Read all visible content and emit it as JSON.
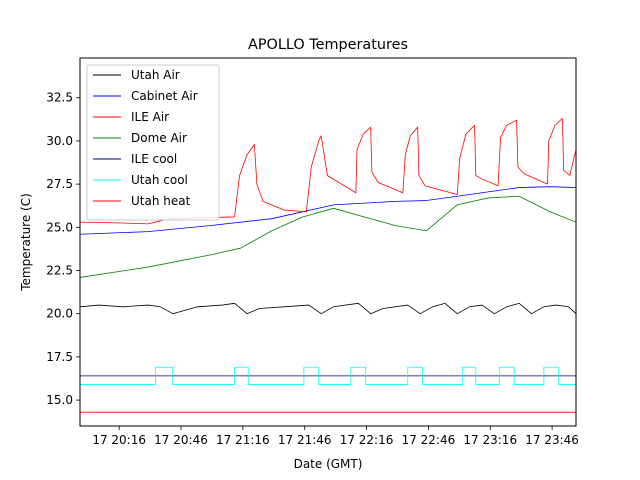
{
  "chart_data": {
    "type": "line",
    "title": "APOLLO Temperatures",
    "xlabel": "Date (GMT)",
    "ylabel": "Temperature (C)",
    "xlim": [
      19.95,
      23.96
    ],
    "ylim": [
      13.5,
      34.8
    ],
    "grid": false,
    "legend_position": "top-left",
    "x_units": "hours (GMT, day 17)",
    "xticks": [
      {
        "value": 20.2667,
        "label": "17 20:16"
      },
      {
        "value": 20.7667,
        "label": "17 20:46"
      },
      {
        "value": 21.2667,
        "label": "17 21:16"
      },
      {
        "value": 21.7667,
        "label": "17 21:46"
      },
      {
        "value": 22.2667,
        "label": "17 22:16"
      },
      {
        "value": 22.7667,
        "label": "17 22:46"
      },
      {
        "value": 23.2667,
        "label": "17 23:16"
      },
      {
        "value": 23.7667,
        "label": "17 23:46"
      }
    ],
    "yticks": [
      {
        "value": 15.0,
        "label": "15.0"
      },
      {
        "value": 17.5,
        "label": "17.5"
      },
      {
        "value": 20.0,
        "label": "20.0"
      },
      {
        "value": 22.5,
        "label": "22.5"
      },
      {
        "value": 25.0,
        "label": "25.0"
      },
      {
        "value": 27.5,
        "label": "27.5"
      },
      {
        "value": 30.0,
        "label": "30.0"
      },
      {
        "value": 32.5,
        "label": "32.5"
      }
    ],
    "series": [
      {
        "name": "Utah Air",
        "color": "#000000",
        "x": [
          19.95,
          20.1,
          20.3,
          20.5,
          20.6,
          20.7,
          20.9,
          21.1,
          21.2,
          21.3,
          21.4,
          21.6,
          21.8,
          21.9,
          22.0,
          22.2,
          22.3,
          22.4,
          22.6,
          22.7,
          22.8,
          22.9,
          23.0,
          23.1,
          23.2,
          23.3,
          23.4,
          23.5,
          23.6,
          23.7,
          23.8,
          23.9,
          23.96
        ],
        "y": [
          20.4,
          20.5,
          20.4,
          20.5,
          20.4,
          20.0,
          20.4,
          20.5,
          20.6,
          20.0,
          20.3,
          20.4,
          20.5,
          20.0,
          20.4,
          20.6,
          20.0,
          20.3,
          20.5,
          20.0,
          20.4,
          20.6,
          20.0,
          20.4,
          20.5,
          20.0,
          20.4,
          20.6,
          20.0,
          20.4,
          20.5,
          20.4,
          20.0
        ]
      },
      {
        "name": "Cabinet Air",
        "color": "#0000ff",
        "x": [
          19.95,
          20.5,
          21.0,
          21.5,
          22.0,
          22.5,
          22.75,
          23.0,
          23.25,
          23.5,
          23.75,
          23.96
        ],
        "y": [
          24.6,
          24.75,
          25.1,
          25.5,
          26.3,
          26.5,
          26.55,
          26.8,
          27.05,
          27.3,
          27.35,
          27.3
        ]
      },
      {
        "name": "ILE Air",
        "color": "#ff0000",
        "x": [
          19.95,
          20.3,
          20.5,
          20.67,
          21.2,
          21.24,
          21.3,
          21.36,
          21.38,
          21.43,
          21.6,
          21.78,
          21.82,
          21.88,
          21.9,
          21.95,
          22.18,
          22.19,
          22.24,
          22.3,
          22.31,
          22.36,
          22.56,
          22.58,
          22.62,
          22.68,
          22.69,
          22.74,
          23.0,
          23.02,
          23.07,
          23.14,
          23.15,
          23.2,
          23.33,
          23.35,
          23.4,
          23.48,
          23.49,
          23.54,
          23.73,
          23.74,
          23.79,
          23.85,
          23.86,
          23.91,
          23.96
        ],
        "y": [
          25.3,
          25.25,
          25.2,
          25.5,
          25.6,
          28.0,
          29.2,
          29.8,
          27.5,
          26.5,
          26.0,
          25.9,
          28.5,
          30.0,
          30.3,
          28.0,
          27.0,
          29.5,
          30.4,
          30.8,
          28.2,
          27.6,
          27.0,
          29.2,
          30.3,
          30.8,
          28.0,
          27.4,
          26.9,
          29.0,
          30.4,
          30.9,
          28.0,
          27.8,
          27.4,
          30.2,
          30.9,
          31.2,
          28.5,
          28.1,
          27.5,
          30.0,
          30.9,
          31.3,
          28.3,
          28.0,
          29.5
        ]
      },
      {
        "name": "Dome Air",
        "color": "#008000",
        "x": [
          19.95,
          20.5,
          21.0,
          21.25,
          21.5,
          21.75,
          22.0,
          22.25,
          22.5,
          22.75,
          23.0,
          23.25,
          23.5,
          23.75,
          23.96
        ],
        "y": [
          22.1,
          22.7,
          23.4,
          23.8,
          24.8,
          25.6,
          26.1,
          25.6,
          25.1,
          24.8,
          26.3,
          26.7,
          26.8,
          25.9,
          25.3
        ]
      },
      {
        "name": "ILE cool",
        "color": "#000080",
        "x": [
          19.95,
          23.96
        ],
        "y": [
          16.4,
          16.4
        ]
      },
      {
        "name": "Utah cool",
        "color": "#00ffff",
        "x": [
          19.95,
          20.56,
          20.56,
          20.7,
          20.7,
          21.2,
          21.2,
          21.31,
          21.31,
          21.76,
          21.76,
          21.88,
          21.88,
          22.14,
          22.14,
          22.26,
          22.26,
          22.6,
          22.6,
          22.72,
          22.72,
          23.04,
          23.04,
          23.15,
          23.15,
          23.34,
          23.34,
          23.46,
          23.46,
          23.7,
          23.7,
          23.82,
          23.82,
          23.96
        ],
        "y": [
          15.9,
          15.9,
          16.9,
          16.9,
          15.9,
          15.9,
          16.9,
          16.9,
          15.9,
          15.9,
          16.9,
          16.9,
          15.9,
          15.9,
          16.9,
          16.9,
          15.9,
          15.9,
          16.9,
          16.9,
          15.9,
          15.9,
          16.9,
          16.9,
          15.9,
          15.9,
          16.9,
          16.9,
          15.9,
          15.9,
          16.9,
          16.9,
          15.9,
          15.9
        ]
      },
      {
        "name": "Utah heat",
        "color": "#ff0000",
        "x": [
          19.95,
          23.96
        ],
        "y": [
          14.3,
          14.3
        ]
      }
    ]
  }
}
